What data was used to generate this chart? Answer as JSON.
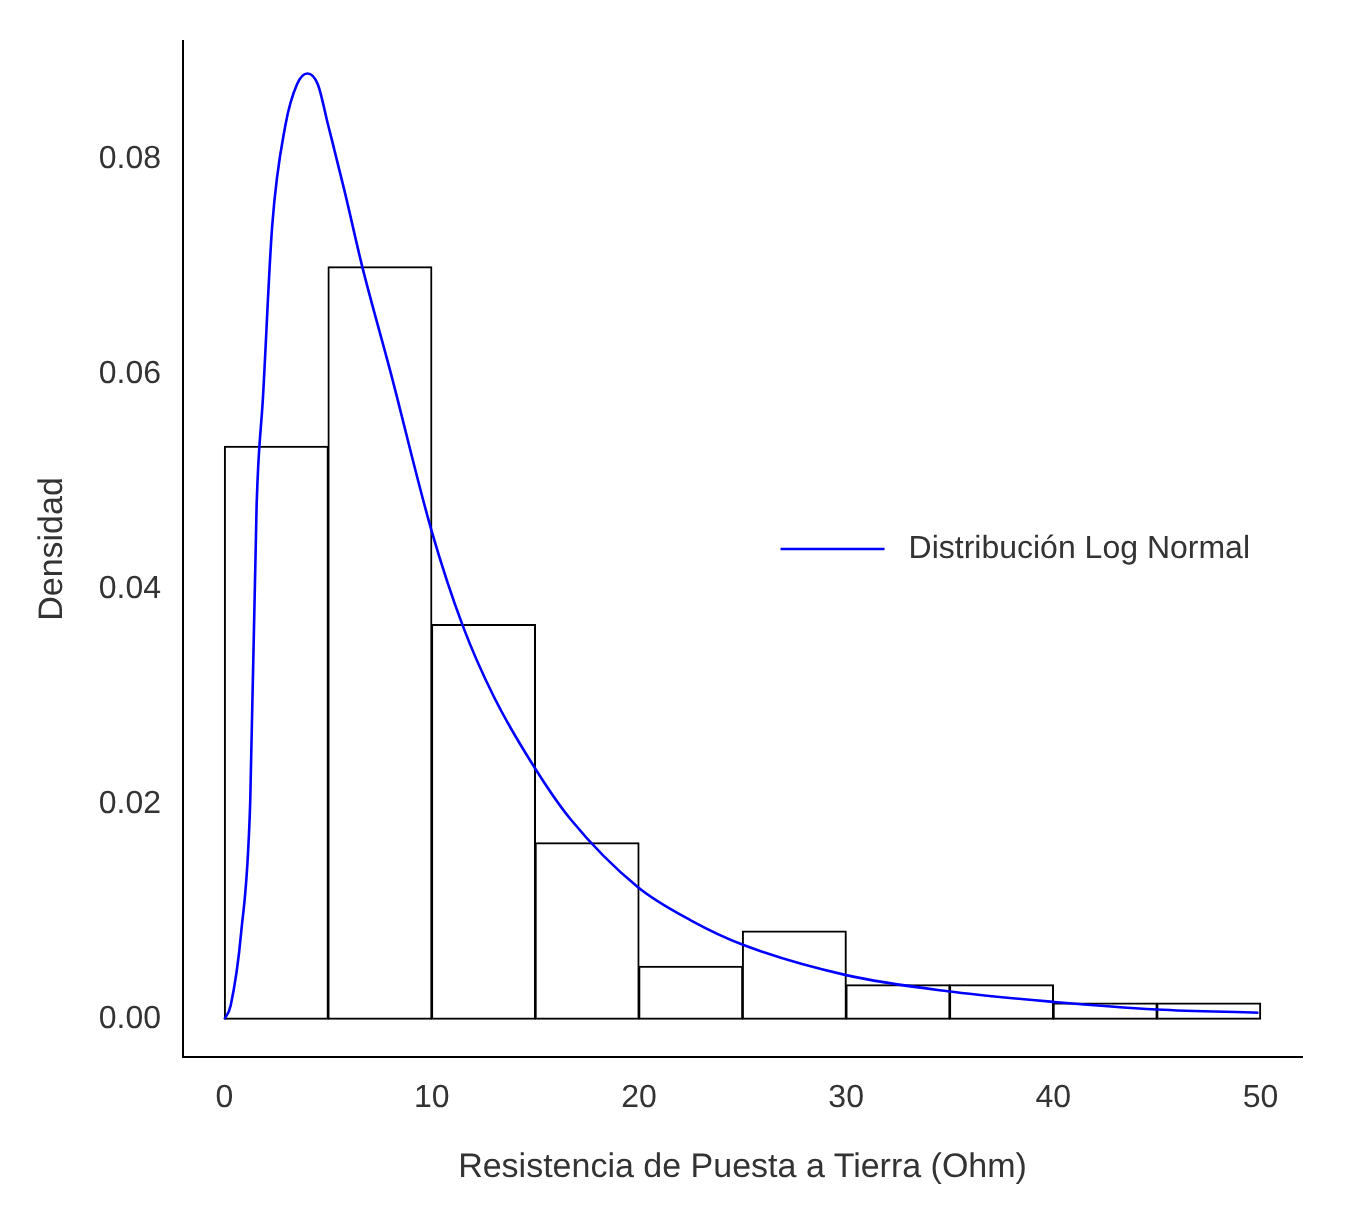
{
  "chart_data": {
    "type": "histogram",
    "xlabel": "Resistencia de Puesta a Tierra (Ohm)",
    "ylabel": "Densidad",
    "bins": [
      0,
      5,
      10,
      15,
      20,
      25,
      30,
      35,
      40,
      45,
      50
    ],
    "values": [
      0.0533,
      0.07,
      0.0367,
      0.0164,
      0.0049,
      0.0082,
      0.0032,
      0.0032,
      0.0015,
      0.0015
    ],
    "color": "#ffffff",
    "series": [
      {
        "name": "Distribución Log Normal",
        "type": "line",
        "color": "#0000ff",
        "x": [
          0,
          0.3,
          0.8,
          1.24,
          1.55,
          1.86,
          2.3,
          2.94,
          3.5,
          4.0,
          4.5,
          5.0,
          5.8,
          6.65,
          8.0,
          10.0,
          11.5,
          13.0,
          15.0,
          16.7,
          19.94,
          22.5,
          25.05,
          30.0,
          34.9,
          40.05,
          45.0,
          49.9
        ],
        "values": [
          0,
          0.0013,
          0.008,
          0.0202,
          0.0479,
          0.058,
          0.0738,
          0.0832,
          0.087,
          0.088,
          0.087,
          0.0832,
          0.077,
          0.07,
          0.0603,
          0.0454,
          0.0366,
          0.03,
          0.0233,
          0.0186,
          0.0123,
          0.0092,
          0.0069,
          0.0041,
          0.0026,
          0.0016,
          0.0009,
          0.0006
        ]
      }
    ],
    "xlim": [
      -2,
      52
    ],
    "xticks": [
      0,
      10,
      20,
      30,
      40,
      50
    ],
    "ylim": [
      -0.0035,
      0.091
    ],
    "yticks": [
      {
        "value": 0,
        "label": "0.00"
      },
      0.02,
      0.04,
      0.06,
      0.08
    ],
    "legend": "right",
    "grid": false
  }
}
